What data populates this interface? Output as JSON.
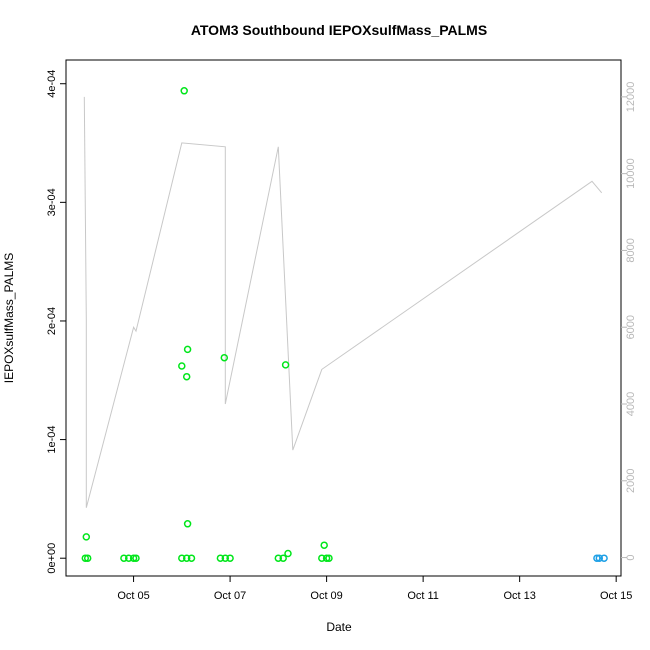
{
  "chart_data": {
    "type": "scatter",
    "title": "ATOM3 Southbound IEPOXsulfMass_PALMS",
    "xlabel": "Date",
    "ylabel": "IEPOXsulfMass_PALMS",
    "x_ticks": [
      "Oct 05",
      "Oct 07",
      "Oct 09",
      "Oct 11",
      "Oct 13",
      "Oct 15"
    ],
    "x_tick_days": [
      5,
      7,
      9,
      11,
      13,
      15
    ],
    "xlim_days": [
      3.6,
      15.1
    ],
    "y_ticks": [
      "0e+00",
      "1e-04",
      "2e-04",
      "3e-04",
      "4e-04"
    ],
    "y_tick_values": [
      0,
      0.0001,
      0.0002,
      0.0003,
      0.0004
    ],
    "ylim": [
      -1.5e-05,
      0.00042
    ],
    "y2_ticks": [
      "0",
      "2000",
      "4000",
      "6000",
      "8000",
      "10000",
      "12000"
    ],
    "y2_tick_values": [
      0,
      2000,
      4000,
      6000,
      8000,
      10000,
      12000
    ],
    "y2lim": [
      -480,
      12960
    ],
    "grid": false,
    "series": [
      {
        "values": [
          [
            4.02,
            1.8e-05
          ],
          [
            4.0,
            0.0
          ],
          [
            4.05,
            0.0
          ],
          [
            4.8,
            0.0
          ],
          [
            4.9,
            0.0
          ],
          [
            5.0,
            0.0
          ],
          [
            5.05,
            0.0
          ],
          [
            6.05,
            0.000394
          ],
          [
            6.0,
            0.000162
          ],
          [
            6.12,
            0.000176
          ],
          [
            6.1,
            0.000153
          ],
          [
            6.12,
            2.9e-05
          ],
          [
            6.0,
            0.0
          ],
          [
            6.1,
            0.0
          ],
          [
            6.2,
            0.0
          ],
          [
            6.88,
            0.000169
          ],
          [
            6.8,
            0.0
          ],
          [
            6.9,
            0.0
          ],
          [
            7.0,
            0.0
          ],
          [
            8.15,
            0.000163
          ],
          [
            8.0,
            0.0
          ],
          [
            8.1,
            0.0
          ],
          [
            8.2,
            4e-06
          ],
          [
            8.95,
            1.1e-05
          ],
          [
            8.9,
            0.0
          ],
          [
            9.0,
            0.0
          ],
          [
            9.05,
            0.0
          ],
          [
            14.6,
            0.0
          ],
          [
            14.65,
            0.0
          ],
          [
            14.75,
            0.0
          ]
        ],
        "colors_by_time": [
          "#00e61a",
          "#00e61a",
          "#00e61a",
          "#00e61a",
          "#00e6a0",
          "#00e6a0",
          "#1ea0e6"
        ]
      }
    ],
    "altitude_trace": {
      "color": "#c8c8c8",
      "points": [
        [
          3.98,
          12000
        ],
        [
          4.02,
          6200
        ],
        [
          4.02,
          1300
        ],
        [
          5.0,
          6000
        ],
        [
          5.05,
          5900
        ],
        [
          6.0,
          10800
        ],
        [
          6.9,
          10700
        ],
        [
          6.9,
          4000
        ],
        [
          8.0,
          10700
        ],
        [
          8.3,
          2800
        ],
        [
          8.9,
          4900
        ],
        [
          14.5,
          9800
        ],
        [
          14.7,
          9500
        ]
      ]
    }
  }
}
